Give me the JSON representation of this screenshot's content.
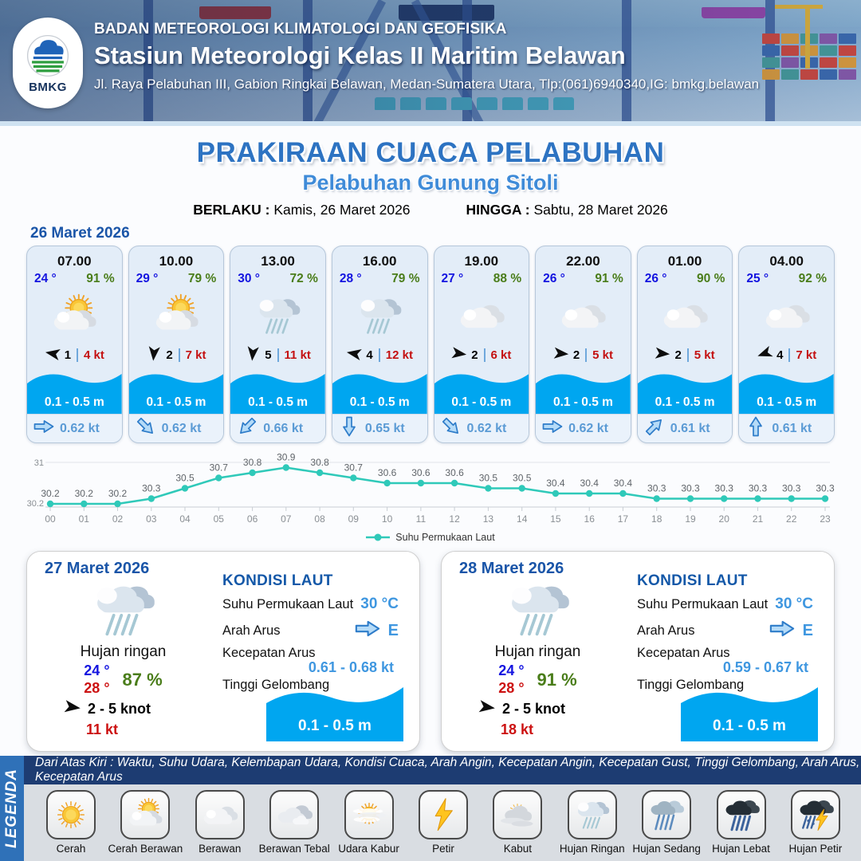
{
  "header": {
    "org": "BADAN METEOROLOGI KLIMATOLOGI DAN GEOFISIKA",
    "station": "Stasiun Meteorologi Kelas II Maritim Belawan",
    "address": "Jl. Raya Pelabuhan III, Gabion Ringkai Belawan, Medan-Sumatera Utara, Tlp:(061)6940340,IG: bmkg.belawan",
    "logo_text": "BMKG"
  },
  "title": {
    "main": "PRAKIRAAN CUACA PELABUHAN",
    "port": "Pelabuhan Gunung Sitoli",
    "valid_label": "BERLAKU :",
    "valid_value": "Kamis, 26 Maret 2026",
    "until_label": "HINGGA :",
    "until_value": "Sabtu, 28 Maret 2026"
  },
  "forecast_date": "26 Maret 2026",
  "cards": [
    {
      "time": "07.00",
      "temp": "24 °",
      "humidity": "91 %",
      "icon": "cerah-berawan",
      "wind_deg": 190,
      "wind": "1",
      "gust": "4 kt",
      "wave": "0.1 - 0.5 m",
      "cur_deg": 0,
      "cur": "0.62 kt"
    },
    {
      "time": "10.00",
      "temp": "29 °",
      "humidity": "79 %",
      "icon": "cerah-berawan",
      "wind_deg": 95,
      "wind": "2",
      "gust": "7 kt",
      "wave": "0.1 - 0.5 m",
      "cur_deg": 45,
      "cur": "0.62 kt"
    },
    {
      "time": "13.00",
      "temp": "30 °",
      "humidity": "72 %",
      "icon": "hujan-ringan",
      "wind_deg": 95,
      "wind": "5",
      "gust": "11 kt",
      "wave": "0.1 - 0.5 m",
      "cur_deg": 135,
      "cur": "0.66 kt"
    },
    {
      "time": "16.00",
      "temp": "28 °",
      "humidity": "79 %",
      "icon": "hujan-ringan",
      "wind_deg": 190,
      "wind": "4",
      "gust": "12 kt",
      "wave": "0.1 - 0.5 m",
      "cur_deg": 90,
      "cur": "0.65 kt"
    },
    {
      "time": "19.00",
      "temp": "27 °",
      "humidity": "88 %",
      "icon": "berawan",
      "wind_deg": 8,
      "wind": "2",
      "gust": "6 kt",
      "wave": "0.1 - 0.5 m",
      "cur_deg": 45,
      "cur": "0.62 kt"
    },
    {
      "time": "22.00",
      "temp": "26 °",
      "humidity": "91 %",
      "icon": "berawan",
      "wind_deg": 5,
      "wind": "2",
      "gust": "5 kt",
      "wave": "0.1 - 0.5 m",
      "cur_deg": 0,
      "cur": "0.62 kt"
    },
    {
      "time": "01.00",
      "temp": "26 °",
      "humidity": "90 %",
      "icon": "berawan",
      "wind_deg": 5,
      "wind": "2",
      "gust": "5 kt",
      "wave": "0.1 - 0.5 m",
      "cur_deg": -45,
      "cur": "0.61 kt"
    },
    {
      "time": "04.00",
      "temp": "25 °",
      "humidity": "92 %",
      "icon": "berawan",
      "wind_deg": 160,
      "wind": "4",
      "gust": "7 kt",
      "wave": "0.1 - 0.5 m",
      "cur_deg": -90,
      "cur": "0.61 kt"
    }
  ],
  "chart_data": {
    "type": "line",
    "series_name": "Suhu Permukaan Laut",
    "x": [
      "00",
      "01",
      "02",
      "03",
      "04",
      "05",
      "06",
      "07",
      "08",
      "09",
      "10",
      "11",
      "12",
      "13",
      "14",
      "15",
      "16",
      "17",
      "18",
      "19",
      "20",
      "21",
      "22",
      "23"
    ],
    "values": [
      30.2,
      30.2,
      30.2,
      30.3,
      30.5,
      30.7,
      30.8,
      30.9,
      30.8,
      30.7,
      30.6,
      30.6,
      30.6,
      30.5,
      30.5,
      30.4,
      30.4,
      30.4,
      30.3,
      30.3,
      30.3,
      30.3,
      30.3,
      30.3
    ],
    "ylim": [
      30.2,
      31
    ],
    "yticks": [
      "31",
      "30.2"
    ],
    "line_color": "#2fc9b9",
    "legend_position": "bottom",
    "grid": "top-line-only"
  },
  "days": [
    {
      "date": "27 Maret 2026",
      "icon": "hujan-ringan",
      "condition": "Hujan ringan",
      "temp_min": "24 °",
      "temp_max": "28 °",
      "humidity": "87 %",
      "wind_range": "2  - 5 knot",
      "gust": "11 kt",
      "sea": {
        "title": "KONDISI LAUT",
        "sst_label": "Suhu Permukaan Laut",
        "sst": "30 °C",
        "dir_label": "Arah Arus",
        "dir": "E",
        "speed_label": "Kecepatan Arus",
        "speed": "0.61 - 0.68 kt",
        "wave_label": "Tinggi Gelombang",
        "wave": "0.1 - 0.5 m"
      }
    },
    {
      "date": "28 Maret 2026",
      "icon": "hujan-ringan",
      "condition": "Hujan ringan",
      "temp_min": "24 °",
      "temp_max": "28 °",
      "humidity": "91 %",
      "wind_range": "2  - 5 knot",
      "gust": "18 kt",
      "sea": {
        "title": "KONDISI LAUT",
        "sst_label": "Suhu Permukaan Laut",
        "sst": "30 °C",
        "dir_label": "Arah Arus",
        "dir": "E",
        "speed_label": "Kecepatan Arus",
        "speed": "0.59  - 0.67 kt",
        "wave_label": "Tinggi Gelombang",
        "wave": "0.1 - 0.5 m"
      }
    }
  ],
  "legend": {
    "sidebar": "LEGENDA",
    "intro": "Dari Atas Kiri : Waktu, Suhu Udara, Kelembapan Udara, Kondisi Cuaca, Arah Angin, Kecepatan Angin, Kecepatan Gust, Tinggi Gelombang, Arah Arus, Kecepatan Arus",
    "items": [
      {
        "icon": "cerah",
        "label": "Cerah"
      },
      {
        "icon": "cerah-berawan",
        "label": "Cerah Berawan"
      },
      {
        "icon": "berawan",
        "label": "Berawan"
      },
      {
        "icon": "berawan-tebal",
        "label": "Berawan Tebal"
      },
      {
        "icon": "udara-kabur",
        "label": "Udara Kabur"
      },
      {
        "icon": "petir",
        "label": "Petir"
      },
      {
        "icon": "kabut",
        "label": "Kabut"
      },
      {
        "icon": "hujan-ringan",
        "label": "Hujan Ringan"
      },
      {
        "icon": "hujan-sedang",
        "label": "Hujan Sedang"
      },
      {
        "icon": "hujan-lebat",
        "label": "Hujan Lebat"
      },
      {
        "icon": "hujan-petir",
        "label": "Hujan Petir"
      }
    ]
  },
  "colors": {
    "accent_blue": "#1a55a8",
    "value_blue": "#3f97e0",
    "temp_blue": "#1414e0",
    "humidity_green": "#4a7d1a",
    "gust_red": "#c41111",
    "wave_blue": "#00a6f0",
    "sst_line": "#2fc9b9",
    "band_navy": "#1d3c72",
    "legend_strip": "#2f71b8"
  }
}
